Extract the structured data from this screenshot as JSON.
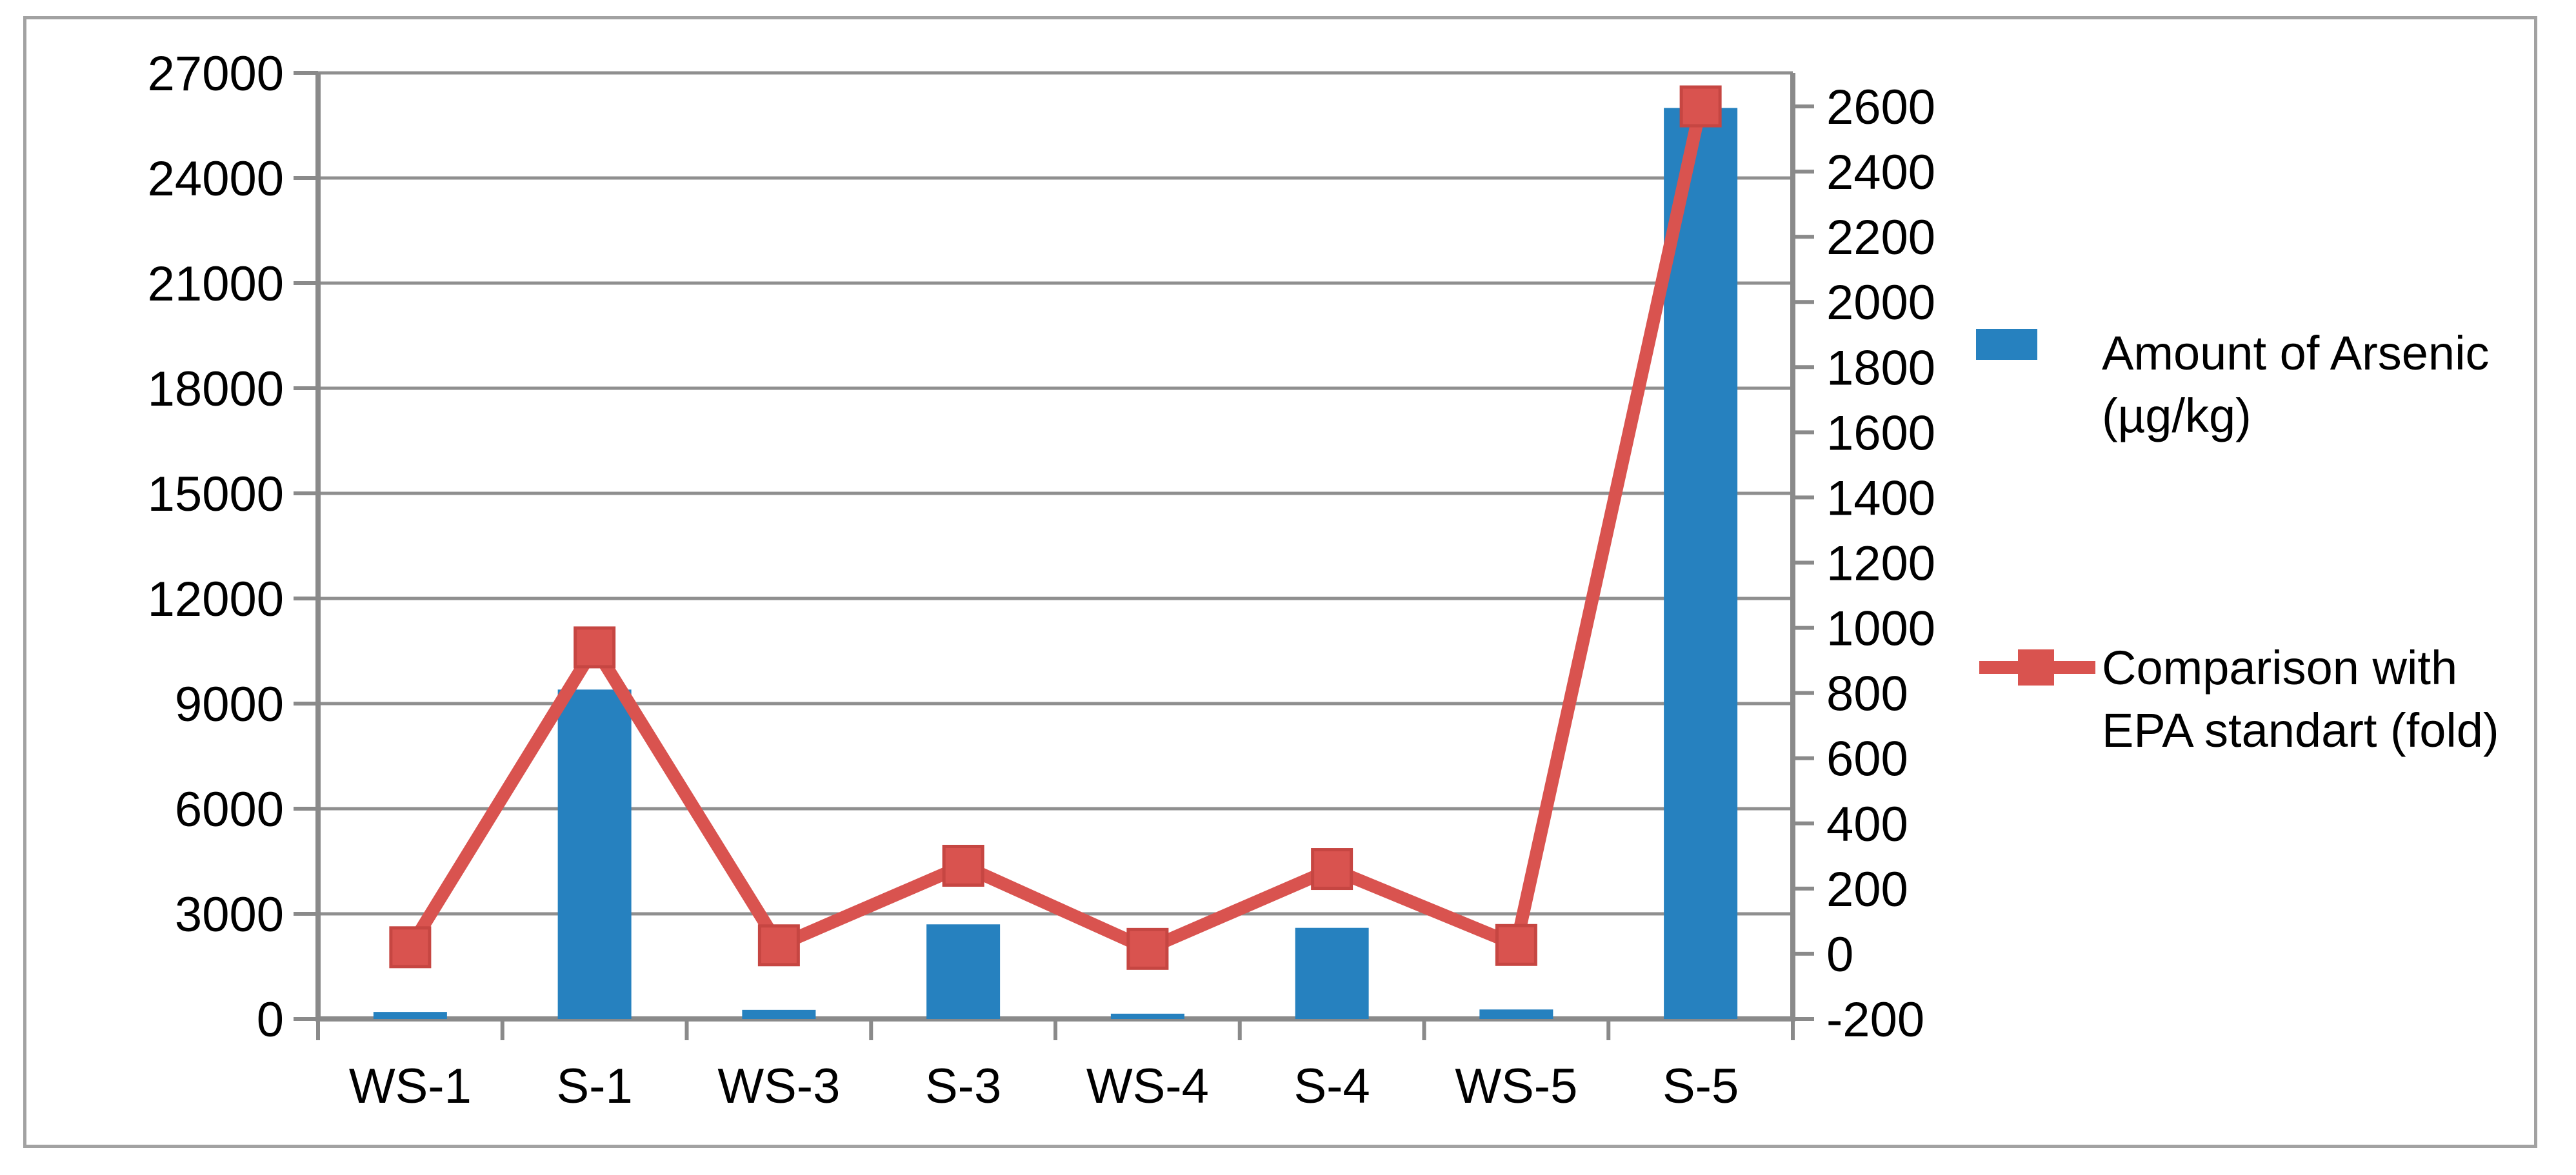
{
  "chart_data": {
    "type": "combo-bar-line",
    "categories": [
      "WS-1",
      "S-1",
      "WS-3",
      "S-3",
      "WS-4",
      "S-4",
      "WS-5",
      "S-5"
    ],
    "series": [
      {
        "name": "Amount of Arsenic (µg/kg)",
        "type": "bar",
        "axis": "left",
        "values": [
          200,
          9400,
          260,
          2700,
          150,
          2600,
          270,
          26000
        ]
      },
      {
        "name": "Comparison with EPA standart (fold)",
        "type": "line",
        "axis": "right",
        "marker": "square",
        "values": [
          20,
          940,
          26,
          270,
          15,
          260,
          27,
          2600
        ]
      }
    ],
    "left_axis": {
      "min": 0,
      "max": 27000,
      "step": 3000,
      "tick_labels": [
        "27000",
        "24000",
        "21000",
        "18000",
        "15000",
        "12000",
        "9000",
        "6000",
        "3000",
        "0"
      ]
    },
    "right_axis": {
      "min": -200,
      "max": 2600,
      "step": 200,
      "tick_labels": [
        "2600",
        "2400",
        "2200",
        "2000",
        "1800",
        "1600",
        "1400",
        "1200",
        "1000",
        "800",
        "600",
        "400",
        "200",
        "0",
        "-200"
      ]
    },
    "grid": "horizontal gridlines at left-axis ticks",
    "legend_position": "right"
  },
  "legend": {
    "items": [
      {
        "swatch": "blue-bar-swatch",
        "lines": [
          "Amount of Arsenic",
          "(µg/kg)"
        ]
      },
      {
        "swatch": "red-line-square-marker",
        "lines": [
          "Comparison with",
          "EPA standart (fold)"
        ]
      }
    ]
  },
  "colors": {
    "bar_blue": "#2681BF",
    "line_red": "#D9534F",
    "marker_border": "#C64642",
    "grid_gray": "#8F8F8F",
    "axis_gray": "#8A8A8A",
    "frame_gray": "#A2A2A2",
    "text": "#000000"
  }
}
